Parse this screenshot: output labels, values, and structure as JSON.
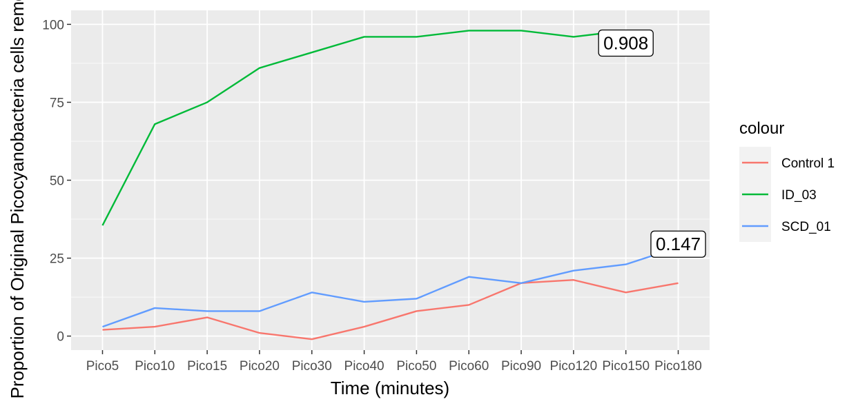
{
  "chart_data": {
    "type": "line",
    "xlabel": "Time (minutes)",
    "ylabel": "Proportion of Original Picocyanobacteria cells removed",
    "categories": [
      "Pico5",
      "Pico10",
      "Pico15",
      "Pico20",
      "Pico30",
      "Pico40",
      "Pico50",
      "Pico60",
      "Pico90",
      "Pico120",
      "Pico150",
      "Pico180"
    ],
    "y_ticks": [
      0,
      25,
      50,
      75,
      100
    ],
    "ylim": [
      -4.5,
      104.5
    ],
    "grid": true,
    "legend": {
      "title": "colour",
      "position": "right"
    },
    "series": [
      {
        "name": "Control 1",
        "color": "#F8766D",
        "values": [
          2,
          3,
          6,
          1,
          -1,
          3,
          8,
          10,
          17,
          18,
          14,
          17
        ]
      },
      {
        "name": "ID_03",
        "color": "#00BA38",
        "values": [
          35.5,
          68,
          75,
          86,
          91,
          96,
          96,
          98,
          98,
          96,
          98,
          null
        ]
      },
      {
        "name": "SCD_01",
        "color": "#619CFF",
        "values": [
          3,
          9,
          8,
          8,
          14,
          11,
          12,
          19,
          17,
          21,
          23,
          28.5
        ]
      }
    ],
    "annotations": [
      {
        "text": "0.908",
        "category": "Pico150",
        "y": 94
      },
      {
        "text": "0.147",
        "category": "Pico180",
        "y": 29.5
      }
    ]
  }
}
